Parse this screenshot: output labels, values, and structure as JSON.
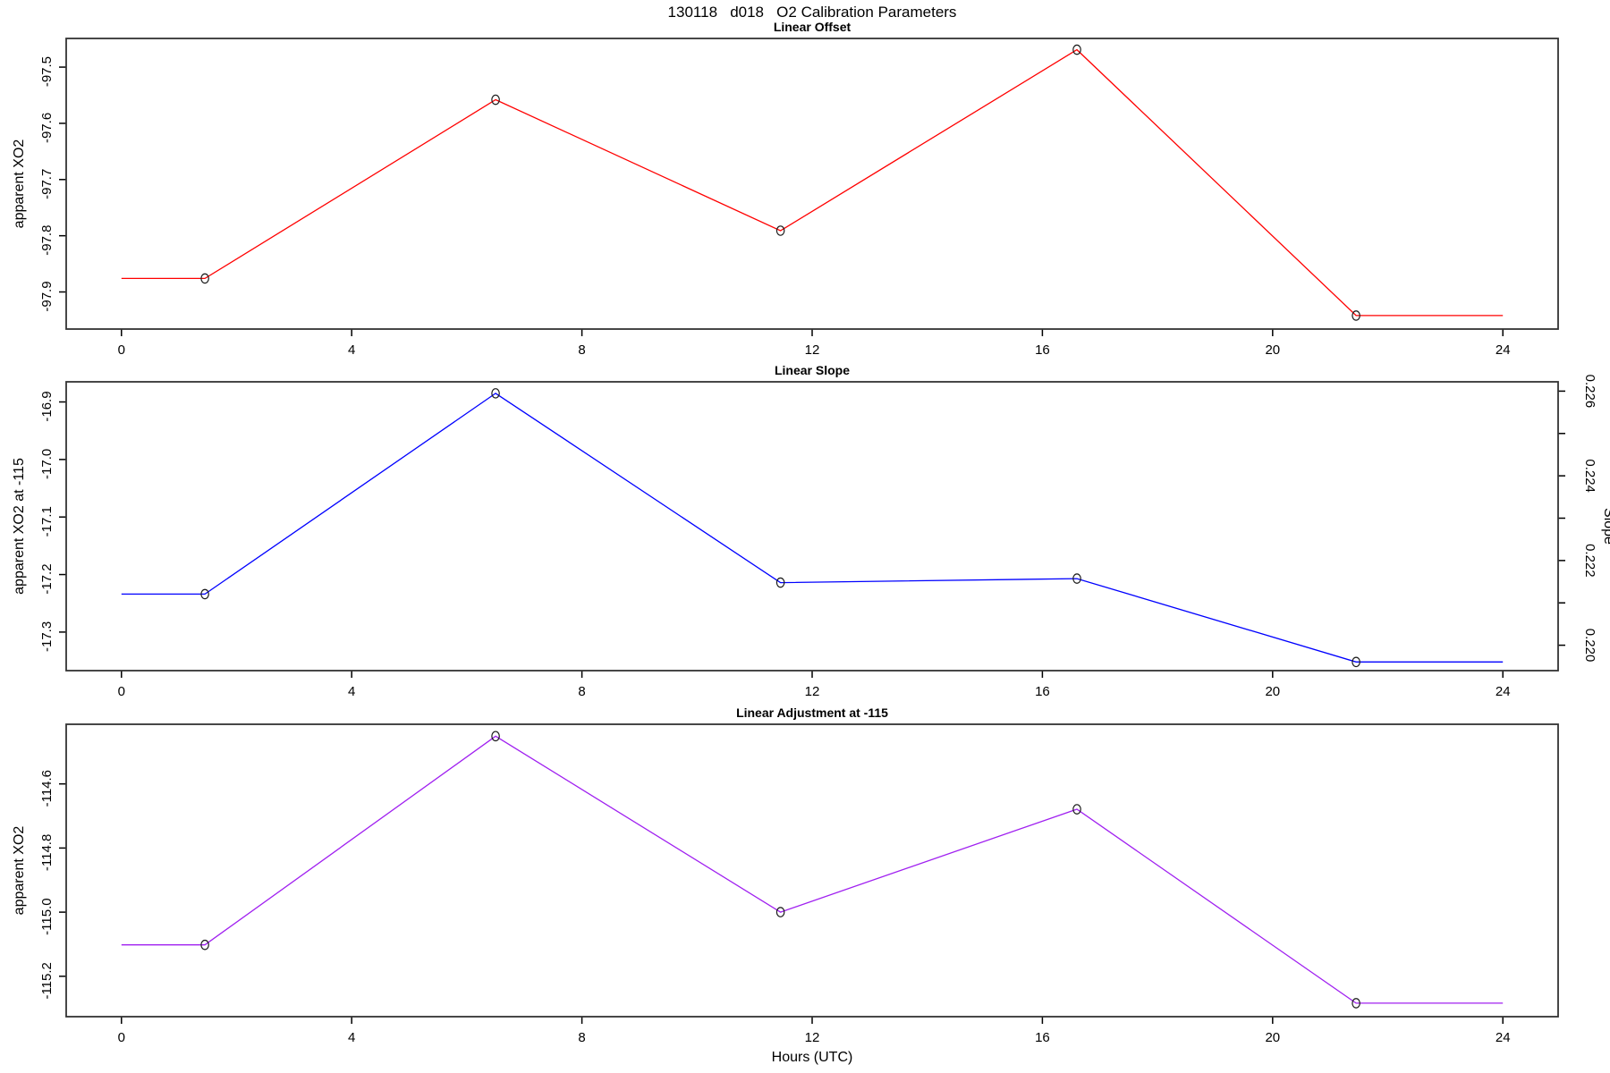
{
  "figure": {
    "title": "130118   d018   O2 Calibration Parameters",
    "xlabel": "Hours (UTC)",
    "background": "#ffffff",
    "text_color": "#000000"
  },
  "chart_data": [
    {
      "type": "line",
      "title": "Linear Offset",
      "ylabel": "apparent XO2",
      "series_color": "#ff0000",
      "marker": "open-circle",
      "marker_color": "#1a1a1a",
      "x": [
        0,
        1.45,
        6.5,
        11.45,
        16.6,
        21.45,
        24
      ],
      "y": [
        -97.876,
        -97.876,
        -97.558,
        -97.791,
        -97.469,
        -97.942,
        -97.942
      ],
      "marker_point_indices": [
        1,
        2,
        3,
        4,
        5
      ],
      "xlim": [
        -0.96,
        24.96
      ],
      "ylim": [
        -97.966,
        -97.449
      ],
      "xticks": [
        0,
        4,
        8,
        12,
        16,
        20,
        24
      ],
      "xtick_labels": [
        "0",
        "4",
        "8",
        "12",
        "16",
        "20",
        "24"
      ],
      "yticks": [
        -97.9,
        -97.8,
        -97.7,
        -97.6,
        -97.5
      ],
      "ytick_labels": [
        "-97.9",
        "-97.8",
        "-97.7",
        "-97.6",
        "-97.5"
      ],
      "grid": false
    },
    {
      "type": "line",
      "title": "Linear Slope",
      "ylabel": "apparent XO2 at -115",
      "series_color": "#0000ff",
      "marker": "open-circle",
      "marker_color": "#1a1a1a",
      "x": [
        0,
        1.45,
        6.5,
        11.45,
        16.6,
        21.45,
        24
      ],
      "y": [
        -17.234,
        -17.234,
        -16.885,
        -17.214,
        -17.207,
        -17.352,
        -17.352
      ],
      "marker_point_indices": [
        1,
        2,
        3,
        4,
        5
      ],
      "xlim": [
        -0.96,
        24.96
      ],
      "ylim": [
        -17.367,
        -16.865
      ],
      "xticks": [
        0,
        4,
        8,
        12,
        16,
        20,
        24
      ],
      "xtick_labels": [
        "0",
        "4",
        "8",
        "12",
        "16",
        "20",
        "24"
      ],
      "yticks": [
        -17.3,
        -17.2,
        -17.1,
        -17.0,
        -16.9
      ],
      "ytick_labels": [
        "-17.3",
        "-17.2",
        "-17.1",
        "-17.0",
        "-16.9"
      ],
      "right_axis": {
        "label": "Slope",
        "ylim": [
          0.2194,
          0.22622
        ],
        "ticks": [
          0.22,
          0.221,
          0.222,
          0.223,
          0.224,
          0.225,
          0.226
        ],
        "tick_labels": [
          "0.220",
          "",
          "0.222",
          "",
          "0.224",
          "",
          "0.226"
        ]
      },
      "grid": false
    },
    {
      "type": "line",
      "title": "Linear Adjustment at -115",
      "ylabel": "apparent XO2",
      "series_color": "#a020f0",
      "marker": "open-circle",
      "marker_color": "#1a1a1a",
      "x": [
        0,
        1.45,
        6.5,
        11.45,
        16.6,
        21.45,
        24
      ],
      "y": [
        -115.102,
        -115.102,
        -114.451,
        -115.0,
        -114.679,
        -115.284,
        -115.284
      ],
      "marker_point_indices": [
        1,
        2,
        3,
        4,
        5
      ],
      "xlim": [
        -0.96,
        24.96
      ],
      "ylim": [
        -115.326,
        -114.414
      ],
      "xticks": [
        0,
        4,
        8,
        12,
        16,
        20,
        24
      ],
      "xtick_labels": [
        "0",
        "4",
        "8",
        "12",
        "16",
        "20",
        "24"
      ],
      "yticks": [
        -115.2,
        -115.0,
        -114.8,
        -114.6
      ],
      "ytick_labels": [
        "-115.2",
        "-115.0",
        "-114.8",
        "-114.6"
      ],
      "grid": false
    }
  ]
}
